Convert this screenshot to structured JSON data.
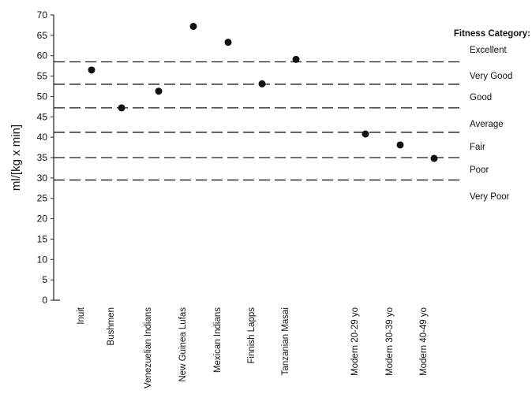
{
  "chart_data": {
    "type": "scatter",
    "ylabel": "ml/[kg x min]",
    "ylim": [
      0,
      70
    ],
    "ytick_step": 5,
    "categories": [
      "Inuit",
      "Bushmen",
      "Venezuelian Indians",
      "New Guinea Lufas",
      "Mexican Indians",
      "Finnish Lapps",
      "Tanzanian Masai",
      "Modern 20-29 yo",
      "Modern 30-39 yo",
      "Modern 40-49 yo"
    ],
    "values": [
      56.5,
      47.2,
      51.3,
      67.2,
      63.3,
      53.1,
      59.1,
      40.8,
      38.1,
      34.8
    ],
    "fitness_title": "Fitness Category:",
    "fitness_thresholds": [
      58.5,
      53,
      47.2,
      41.2,
      35,
      29.5
    ],
    "fitness_categories": [
      "Excellent",
      "Very Good",
      "Good",
      "Average",
      "Fair",
      "Poor",
      "Very Poor"
    ]
  },
  "colors": {
    "point": "#111111",
    "threshold_line": "#1a1a1a",
    "axis": "#222222"
  }
}
